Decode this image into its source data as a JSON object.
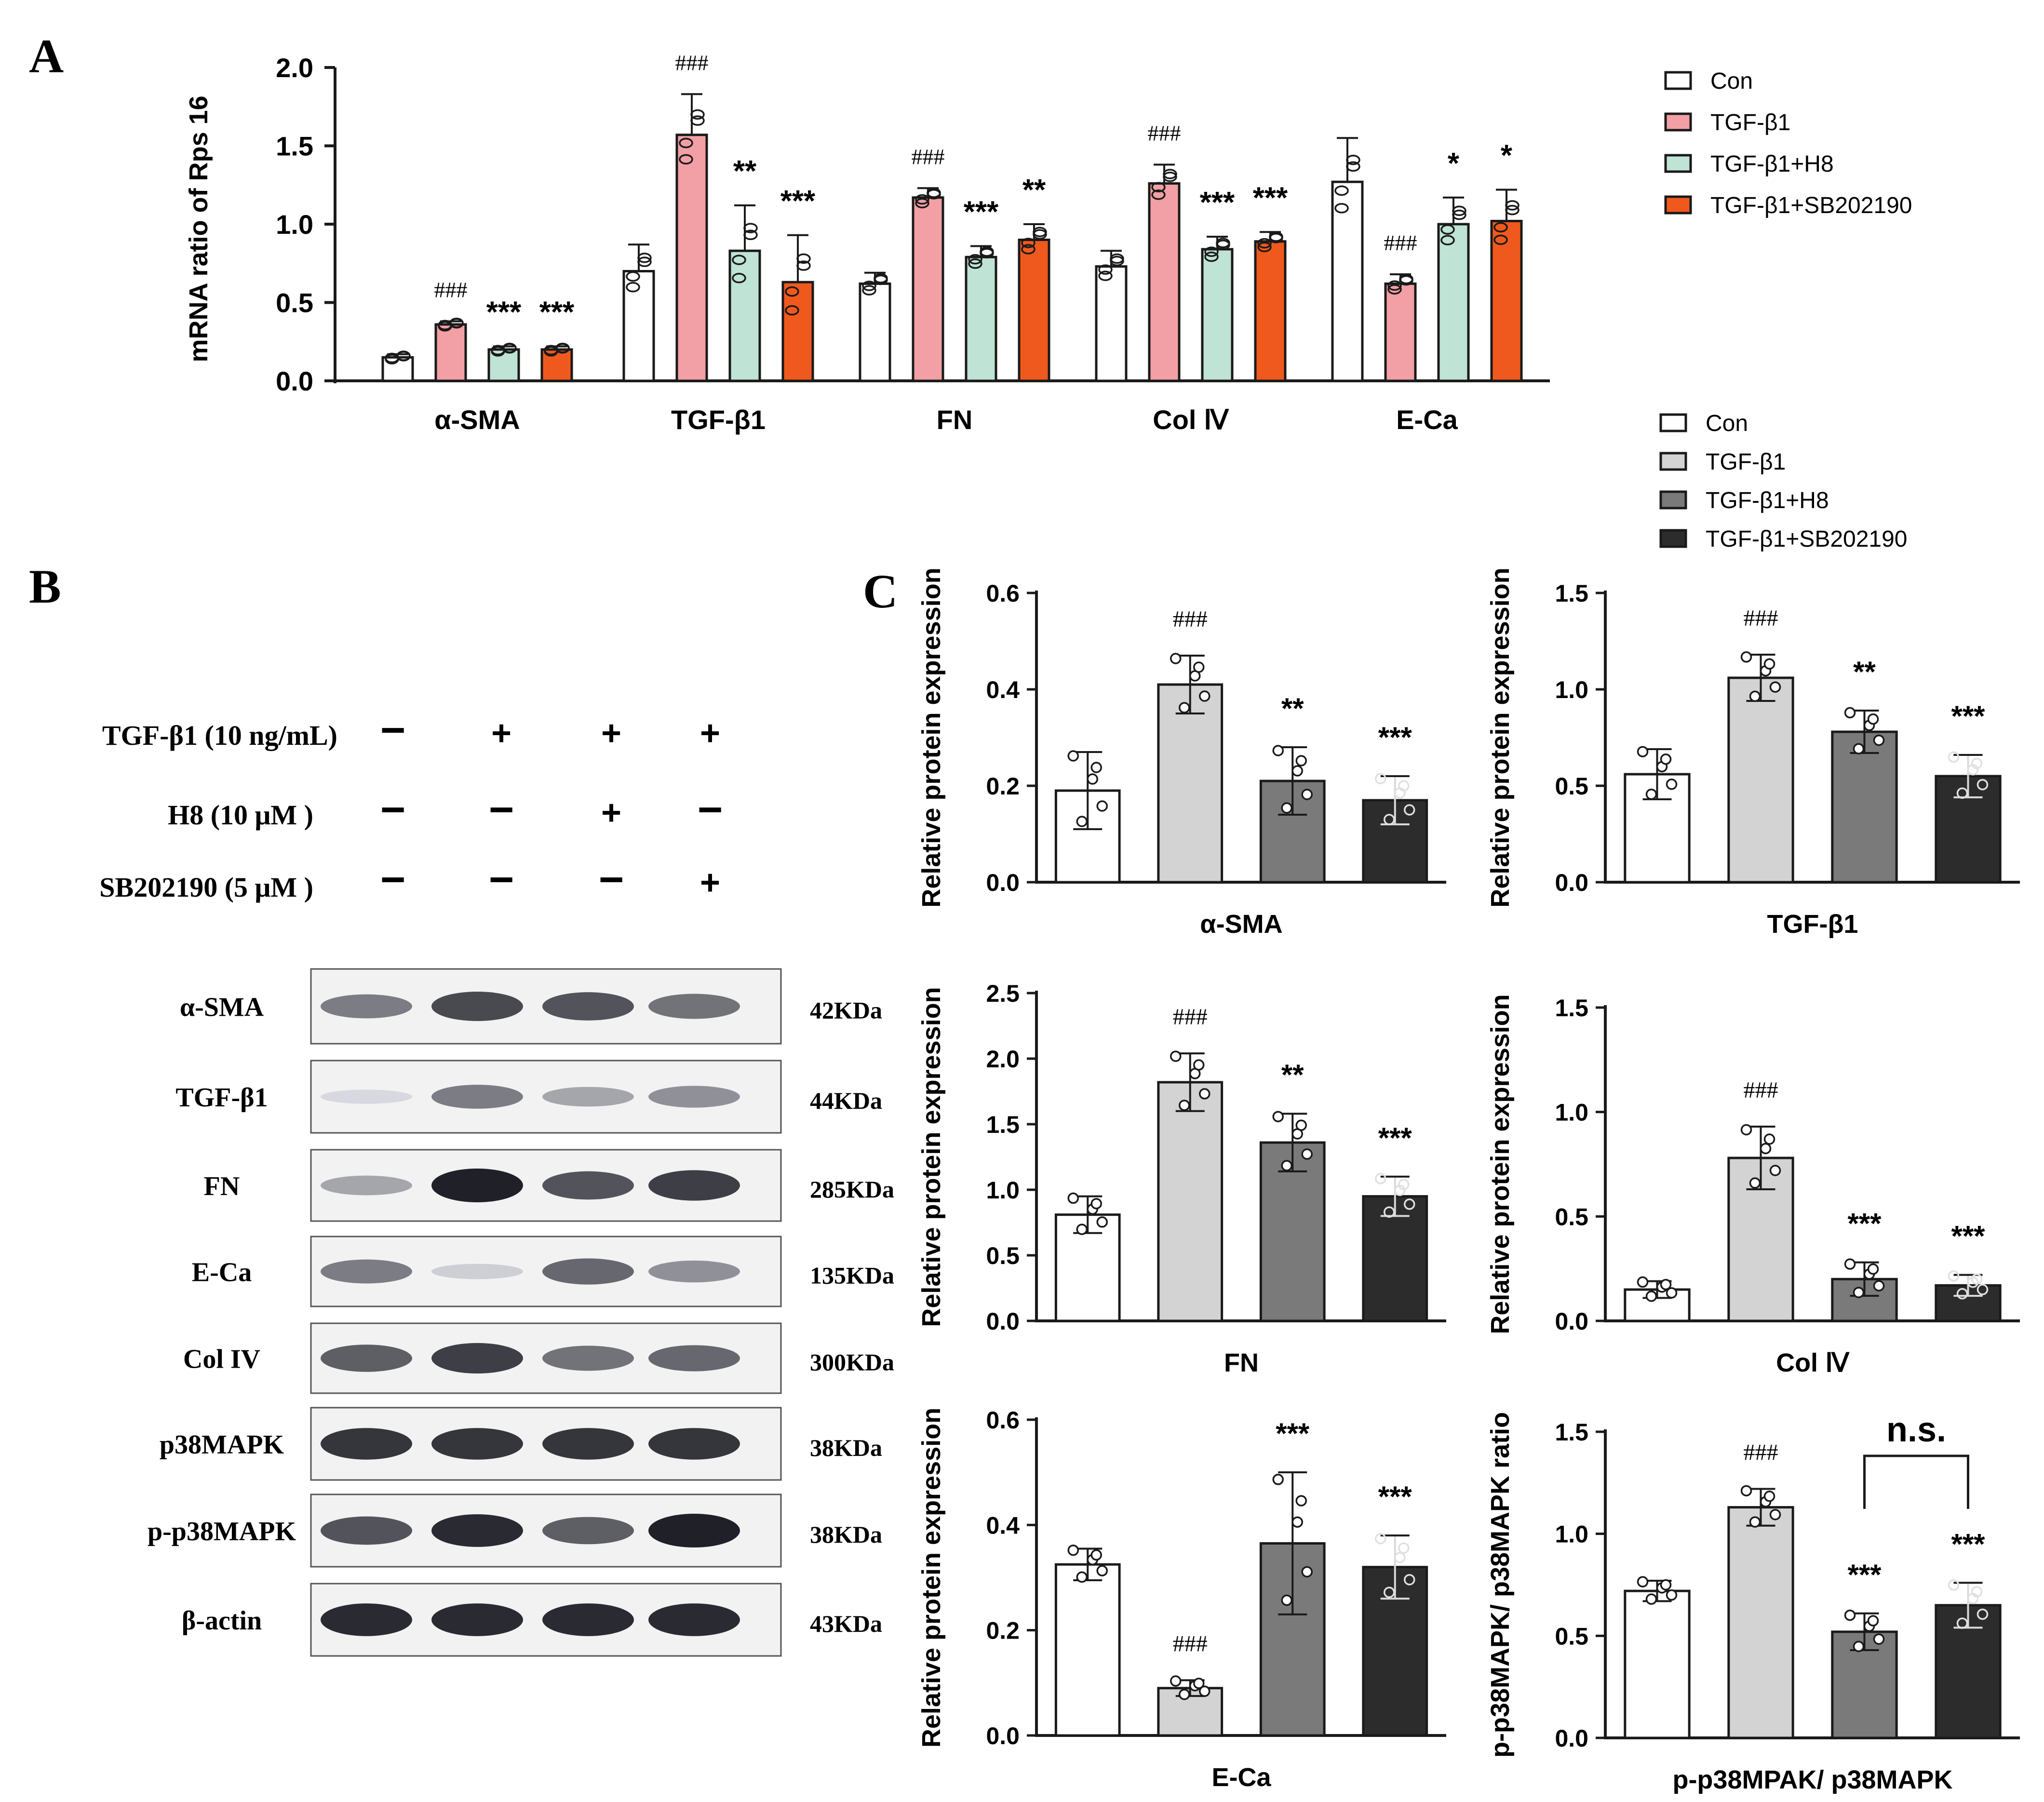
{
  "panel_labels": {
    "a": "A",
    "b": "B",
    "c": "C"
  },
  "colors": {
    "panelA": [
      "#ffffff",
      "#f2a0a5",
      "#bfe3d4",
      "#f0591d"
    ],
    "panelC": [
      "#ffffff",
      "#d3d3d3",
      "#7a7a7a",
      "#2c2c2c"
    ],
    "stroke": "#1a1a1a"
  },
  "panel_a": {
    "ylabel": "mRNA ratio of Rps 16",
    "legend": [
      "Con",
      "TGF-β1",
      "TGF-β1+H8",
      "TGF-β1+SB202190"
    ]
  },
  "panel_b": {
    "treatments": [
      {
        "label": "TGF-β1 (10 ng/mL)",
        "signs": [
          "−",
          "+",
          "+",
          "+"
        ]
      },
      {
        "label": "H8 (10 μM )",
        "signs": [
          "−",
          "−",
          "+",
          "−"
        ]
      },
      {
        "label": "SB202190 (5 μM )",
        "signs": [
          "−",
          "−",
          "−",
          "+"
        ]
      }
    ],
    "blots": [
      {
        "name": "α-SMA",
        "size": "42KDa",
        "intensity": [
          0.55,
          0.8,
          0.75,
          0.6
        ]
      },
      {
        "name": "TGF-β1",
        "size": "44KDa",
        "intensity": [
          0.1,
          0.55,
          0.35,
          0.45
        ]
      },
      {
        "name": "FN",
        "size": "285KDa",
        "intensity": [
          0.35,
          1.0,
          0.75,
          0.85
        ]
      },
      {
        "name": "E-Ca",
        "size": "135KDa",
        "intensity": [
          0.55,
          0.15,
          0.65,
          0.45
        ]
      },
      {
        "name": "Col IV",
        "size": "300KDa",
        "intensity": [
          0.7,
          0.85,
          0.6,
          0.65
        ]
      },
      {
        "name": "p38MAPK",
        "size": "38KDa",
        "intensity": [
          0.9,
          0.9,
          0.9,
          0.9
        ]
      },
      {
        "name": "p-p38MAPK",
        "size": "38KDa",
        "intensity": [
          0.75,
          0.95,
          0.7,
          1.0
        ]
      },
      {
        "name": "β-actin",
        "size": "43KDa",
        "intensity": [
          0.95,
          0.95,
          0.95,
          0.95
        ]
      }
    ]
  },
  "panel_c": {
    "legend": [
      "Con",
      "TGF-β1",
      "TGF-β1+H8",
      "TGF-β1+SB202190"
    ]
  },
  "chart_data": [
    {
      "type": "bar",
      "ylabel": "mRNA ratio of Rps 16",
      "ylim": [
        0,
        2.0
      ],
      "yticks": [
        "0.0",
        "0.5",
        "1.0",
        "1.5",
        "2.0"
      ],
      "categories": [
        "α-SMA",
        "TGF-β1",
        "FN",
        "Col Ⅳ",
        "E-Ca"
      ],
      "series": [
        {
          "name": "Con",
          "values": [
            0.15,
            0.7,
            0.62,
            0.73,
            1.27
          ],
          "errors": [
            0.02,
            0.17,
            0.07,
            0.1,
            0.28
          ],
          "annotations": [
            "",
            "",
            "",
            "",
            ""
          ]
        },
        {
          "name": "TGF-β1",
          "values": [
            0.36,
            1.57,
            1.17,
            1.26,
            0.62
          ],
          "errors": [
            0.02,
            0.26,
            0.06,
            0.12,
            0.06
          ],
          "annotations": [
            "###",
            "###",
            "###",
            "###",
            "###"
          ]
        },
        {
          "name": "TGF-β1+H8",
          "values": [
            0.2,
            0.83,
            0.79,
            0.84,
            1.0
          ],
          "errors": [
            0.02,
            0.29,
            0.07,
            0.08,
            0.17
          ],
          "annotations": [
            "***",
            "**",
            "***",
            "***",
            "*"
          ]
        },
        {
          "name": "TGF-β1+SB202190",
          "values": [
            0.2,
            0.63,
            0.9,
            0.89,
            1.02
          ],
          "errors": [
            0.02,
            0.3,
            0.1,
            0.06,
            0.2
          ],
          "annotations": [
            "***",
            "***",
            "**",
            "***",
            "*"
          ]
        }
      ]
    },
    {
      "type": "bar",
      "xlabel": "α-SMA",
      "ylabel": "Relative protein expression",
      "ylim": [
        0,
        0.6
      ],
      "yticks": [
        "0.0",
        "0.2",
        "0.4",
        "0.6"
      ],
      "categories": [
        "Con",
        "TGF-β1",
        "TGF-β1+H8",
        "TGF-β1+SB202190"
      ],
      "values": [
        0.19,
        0.41,
        0.21,
        0.17
      ],
      "errors": [
        0.08,
        0.06,
        0.07,
        0.05
      ],
      "annotations": [
        "",
        "###",
        "**",
        "***"
      ]
    },
    {
      "type": "bar",
      "xlabel": "TGF-β1",
      "ylabel": "Relative protein expression",
      "ylim": [
        0,
        1.5
      ],
      "yticks": [
        "0.0",
        "0.5",
        "1.0",
        "1.5"
      ],
      "categories": [
        "Con",
        "TGF-β1",
        "TGF-β1+H8",
        "TGF-β1+SB202190"
      ],
      "values": [
        0.56,
        1.06,
        0.78,
        0.55
      ],
      "errors": [
        0.13,
        0.12,
        0.11,
        0.11
      ],
      "annotations": [
        "",
        "###",
        "**",
        "***"
      ]
    },
    {
      "type": "bar",
      "xlabel": "FN",
      "ylabel": "Relative protein expression",
      "ylim": [
        0,
        2.5
      ],
      "yticks": [
        "0.0",
        "0.5",
        "1.0",
        "1.5",
        "2.0",
        "2.5"
      ],
      "categories": [
        "Con",
        "TGF-β1",
        "TGF-β1+H8",
        "TGF-β1+SB202190"
      ],
      "values": [
        0.81,
        1.82,
        1.36,
        0.95
      ],
      "errors": [
        0.14,
        0.22,
        0.22,
        0.15
      ],
      "annotations": [
        "",
        "###",
        "**",
        "***"
      ]
    },
    {
      "type": "bar",
      "xlabel": "Col Ⅳ",
      "ylabel": "Relative protein expression",
      "ylim": [
        0,
        1.5
      ],
      "yticks": [
        "0.0",
        "0.5",
        "1.0",
        "1.5"
      ],
      "categories": [
        "Con",
        "TGF-β1",
        "TGF-β1+H8",
        "TGF-β1+SB202190"
      ],
      "values": [
        0.15,
        0.78,
        0.2,
        0.17
      ],
      "errors": [
        0.04,
        0.15,
        0.08,
        0.05
      ],
      "annotations": [
        "",
        "###",
        "***",
        "***"
      ]
    },
    {
      "type": "bar",
      "xlabel": "E-Ca",
      "ylabel": "Relative protein expression",
      "ylim": [
        0,
        0.6
      ],
      "yticks": [
        "0.0",
        "0.2",
        "0.4",
        "0.6"
      ],
      "categories": [
        "Con",
        "TGF-β1",
        "TGF-β1+H8",
        "TGF-β1+SB202190"
      ],
      "values": [
        0.325,
        0.09,
        0.365,
        0.32
      ],
      "errors": [
        0.03,
        0.015,
        0.135,
        0.06
      ],
      "annotations": [
        "",
        "###",
        "***",
        "***"
      ]
    },
    {
      "type": "bar",
      "xlabel": "p-p38MPAK/ p38MAPK",
      "ylabel": "p-p38MAPK/ p38MAPK ratio",
      "ylim": [
        0,
        1.5
      ],
      "yticks": [
        "0.0",
        "0.5",
        "1.0",
        "1.5"
      ],
      "categories": [
        "Con",
        "TGF-β1",
        "TGF-β1+H8",
        "TGF-β1+SB202190"
      ],
      "values": [
        0.72,
        1.13,
        0.52,
        0.65
      ],
      "errors": [
        0.05,
        0.09,
        0.09,
        0.11
      ],
      "annotations": [
        "",
        "###",
        "***",
        "***"
      ],
      "bracket": "n.s."
    }
  ]
}
